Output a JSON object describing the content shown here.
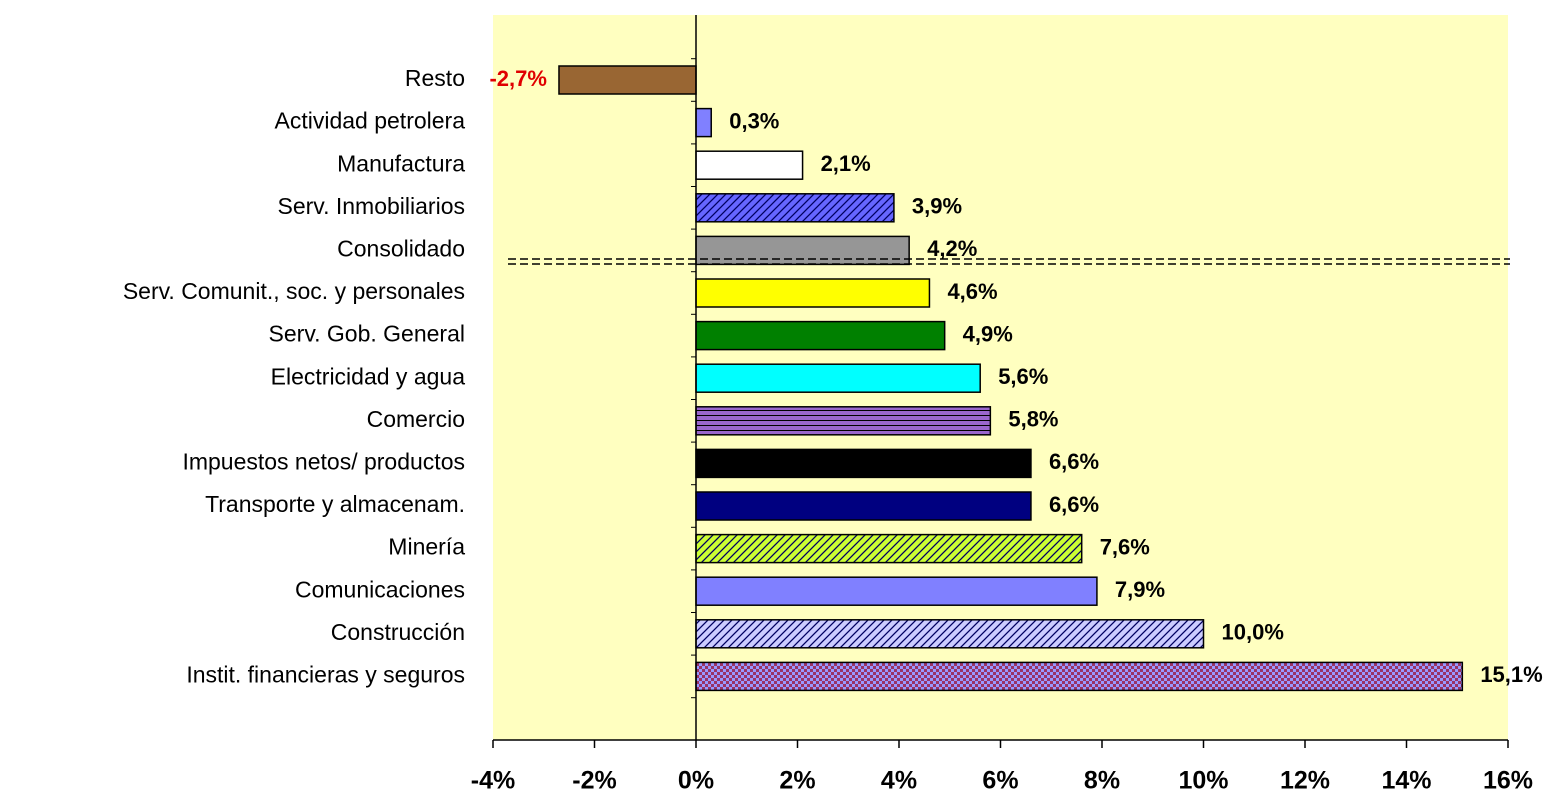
{
  "chart_data": {
    "type": "hbar",
    "categories": [
      "Resto",
      "Actividad petrolera",
      "Manufactura",
      "Serv. Inmobiliarios",
      "Consolidado",
      "Serv. Comunit., soc. y personales",
      "Serv. Gob. General",
      "Electricidad y agua",
      "Comercio",
      "Impuestos netos/ productos",
      "Transporte y almacenam.",
      "Minería",
      "Comunicaciones",
      "Construcción",
      "Instit. financieras y seguros"
    ],
    "values": [
      -2.7,
      0.3,
      2.1,
      3.9,
      4.2,
      4.6,
      4.9,
      5.6,
      5.8,
      6.6,
      6.6,
      7.6,
      7.9,
      10.0,
      15.1
    ],
    "value_labels": [
      "-2,7%",
      "0,3%",
      "2,1%",
      "3,9%",
      "4,2%",
      "4,6%",
      "4,9%",
      "5,6%",
      "5,8%",
      "6,6%",
      "6,6%",
      "7,6%",
      "7,9%",
      "10,0%",
      "15,1%"
    ],
    "colors": [
      "#996633",
      "#8080ff",
      "#ffffff",
      "#6666ff",
      "#969696",
      "#ffff00",
      "#008000",
      "#00ffff",
      "#9966cc",
      "#000000",
      "#000080",
      "#ccff33",
      "#8080ff",
      "#ccccff",
      "#993366"
    ],
    "fill_styles": [
      null,
      null,
      null,
      "diagonal",
      null,
      null,
      null,
      null,
      "horizontal",
      null,
      null,
      "diagonal",
      null,
      "diagonal",
      "checker"
    ],
    "xlim": [
      -4,
      16
    ],
    "xticks": [
      {
        "value": -4,
        "label": "-4%"
      },
      {
        "value": -2,
        "label": "-2%"
      },
      {
        "value": 0,
        "label": "0%"
      },
      {
        "value": 2,
        "label": "2%"
      },
      {
        "value": 4,
        "label": "4%"
      },
      {
        "value": 6,
        "label": "6%"
      },
      {
        "value": 8,
        "label": "8%"
      },
      {
        "value": 10,
        "label": "10%"
      },
      {
        "value": 12,
        "label": "12%"
      },
      {
        "value": 14,
        "label": "14%"
      },
      {
        "value": 16,
        "label": "16%"
      }
    ],
    "background": "#ffffc0",
    "negative_label_color": "#e00000"
  }
}
